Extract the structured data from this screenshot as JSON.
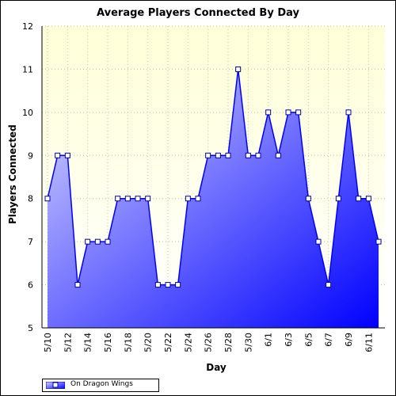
{
  "chart_data": {
    "type": "area",
    "title": "Average Players Connected By Day",
    "xlabel": "Day",
    "ylabel": "Players Connected",
    "ylim": [
      5,
      12
    ],
    "yticks": [
      5,
      6,
      7,
      8,
      9,
      10,
      11,
      12
    ],
    "grid": true,
    "legend_position": "bottom-left",
    "x": [
      "5/10",
      "5/11",
      "5/12",
      "5/13",
      "5/14",
      "5/15",
      "5/16",
      "5/17",
      "5/18",
      "5/19",
      "5/20",
      "5/21",
      "5/22",
      "5/23",
      "5/24",
      "5/25",
      "5/26",
      "5/27",
      "5/28",
      "5/29",
      "5/30",
      "5/31",
      "6/1",
      "6/2",
      "6/3",
      "6/4",
      "6/5",
      "6/6",
      "6/7",
      "6/8",
      "6/9",
      "6/10",
      "6/11",
      "6/12"
    ],
    "x_tick_labels": [
      "5/10",
      "5/12",
      "5/14",
      "5/16",
      "5/18",
      "5/20",
      "5/22",
      "5/24",
      "5/26",
      "5/28",
      "5/30",
      "6/1",
      "6/3",
      "6/5",
      "6/7",
      "6/9",
      "6/11"
    ],
    "series": [
      {
        "name": "On Dragon Wings",
        "values": [
          8,
          9,
          9,
          6,
          7,
          7,
          7,
          8,
          8,
          8,
          8,
          6,
          6,
          6,
          8,
          8,
          9,
          9,
          9,
          11,
          9,
          9,
          10,
          9,
          10,
          10,
          8,
          7,
          6,
          8,
          10,
          8,
          8,
          7
        ]
      }
    ],
    "colors": {
      "plot_background_top": "#ffffd8",
      "plot_background_bottom": "#ffffff",
      "grid": "#c8c8a0",
      "line": "#0000ff",
      "area_top_left": "#dadaff",
      "area_bottom_right": "#0000ff",
      "marker_fill": "#ffffff",
      "marker_stroke": "#0000aa"
    }
  }
}
